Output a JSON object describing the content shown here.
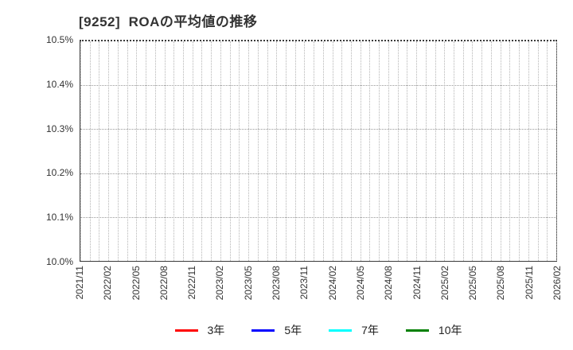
{
  "chart_data": {
    "type": "line",
    "title": "[9252]  ROAの平均値の推移",
    "stock_code": "9252",
    "metric": "ROAの平均値の推移",
    "x_tick_labels": [
      "2021/11",
      "2022/02",
      "2022/05",
      "2022/08",
      "2022/11",
      "2023/02",
      "2023/05",
      "2023/08",
      "2023/11",
      "2024/02",
      "2024/05",
      "2024/08",
      "2024/11",
      "2025/02",
      "2025/05",
      "2025/08",
      "2025/11",
      "2026/02"
    ],
    "x_months_per_tick": 3,
    "y_tick_labels": [
      "10.0%",
      "10.1%",
      "10.2%",
      "10.3%",
      "10.4%",
      "10.5%"
    ],
    "ylim": [
      10.0,
      10.5
    ],
    "y_unit": "%",
    "grid": true,
    "minor_vertical_gridlines": "monthly",
    "legend_position": "bottom",
    "series": [
      {
        "name": "3年",
        "color": "#ff0000",
        "values": []
      },
      {
        "name": "5年",
        "color": "#0000ff",
        "values": []
      },
      {
        "name": "7年",
        "color": "#00ffff",
        "values": []
      },
      {
        "name": "10年",
        "color": "#008000",
        "values": []
      }
    ],
    "note": "no data lines are rendered inside the plot area (empty chart)"
  }
}
